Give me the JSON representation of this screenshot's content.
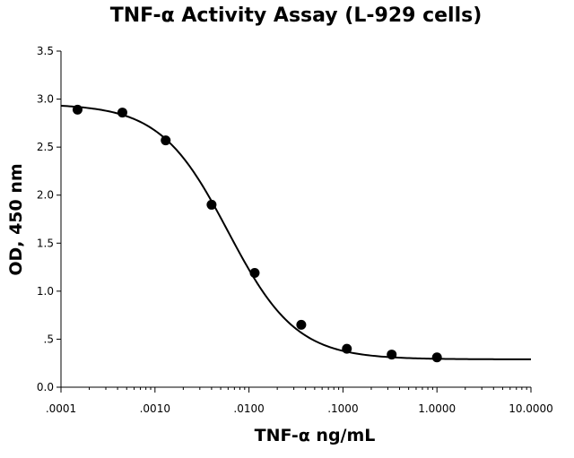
{
  "chart_data": {
    "type": "scatter",
    "title": "TNF-α Activity Assay (L-929 cells)",
    "xlabel": "TNF-α ng/mL",
    "ylabel": "OD, 450 nm",
    "x_scale": "log",
    "xlim": [
      0.0001,
      10
    ],
    "ylim": [
      0,
      3.5
    ],
    "x_ticks": [
      0.0001,
      0.001,
      0.01,
      0.1,
      1,
      10
    ],
    "x_tick_labels": [
      ".0001",
      ".0010",
      ".0100",
      ".1000",
      "1.0000",
      "10.0000"
    ],
    "y_ticks": [
      0,
      0.5,
      1.0,
      1.5,
      2.0,
      2.5,
      3.0,
      3.5
    ],
    "y_tick_labels": [
      "0.0",
      ".5",
      "1.0",
      "1.5",
      "2.0",
      "2.5",
      "3.0",
      "3.5"
    ],
    "grid": false,
    "series": [
      {
        "x": [
          0.00015,
          0.00045,
          0.0013,
          0.004,
          0.0115,
          0.036,
          0.11,
          0.33,
          1.0
        ],
        "y": [
          2.89,
          2.86,
          2.57,
          1.9,
          1.19,
          0.65,
          0.4,
          0.34,
          0.31
        ]
      }
    ],
    "fit_curve": {
      "model": "4PL",
      "bottom": 0.29,
      "top": 2.95,
      "ec50": 0.006,
      "hill": 1.2
    },
    "colors": {
      "markers": "#000000",
      "curve": "#000000",
      "axes": "#000000"
    }
  }
}
